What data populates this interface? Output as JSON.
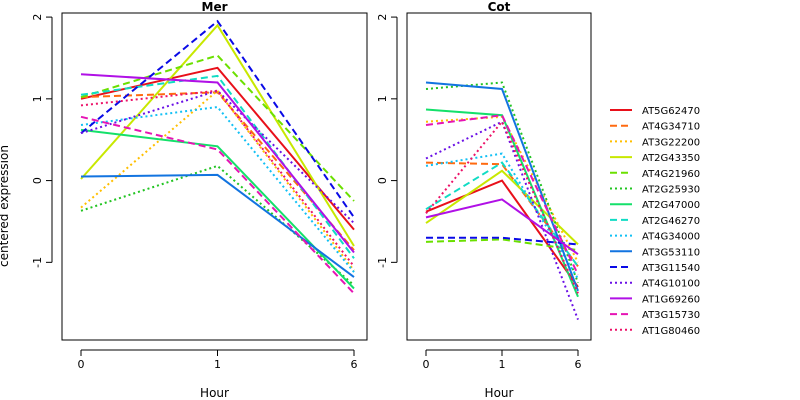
{
  "figure": {
    "ylabel": "centered expression"
  },
  "chart_data": [
    {
      "type": "line",
      "title": "Mer",
      "xlabel": "Hour",
      "ylabel": "centered expression",
      "categories": [
        "0",
        "1",
        "6"
      ],
      "yticks": [
        "-1",
        "0",
        "1",
        "2"
      ],
      "ylim": [
        -1.95,
        2.05
      ],
      "grid": false,
      "legend": "right",
      "series": [
        {
          "name": "AT5G62470",
          "values": [
            1.0,
            1.38,
            -0.6
          ]
        },
        {
          "name": "AT4G34710",
          "values": [
            1.02,
            1.08,
            -0.85
          ]
        },
        {
          "name": "AT3G22200",
          "values": [
            -0.33,
            1.1,
            -1.1
          ]
        },
        {
          "name": "AT2G43350",
          "values": [
            0.02,
            1.9,
            -0.8
          ]
        },
        {
          "name": "AT4G21960",
          "values": [
            1.02,
            1.53,
            -0.25
          ]
        },
        {
          "name": "AT2G25930",
          "values": [
            -0.37,
            0.18,
            -1.28
          ]
        },
        {
          "name": "AT2G47000",
          "values": [
            0.62,
            0.42,
            -1.32
          ]
        },
        {
          "name": "AT2G46270",
          "values": [
            1.05,
            1.28,
            -0.95
          ]
        },
        {
          "name": "AT4G34000",
          "values": [
            0.68,
            0.9,
            -1.12
          ]
        },
        {
          "name": "AT3G53110",
          "values": [
            0.05,
            0.07,
            -1.18
          ]
        },
        {
          "name": "AT3G11540",
          "values": [
            0.58,
            1.95,
            -0.45
          ]
        },
        {
          "name": "AT4G10100",
          "values": [
            0.58,
            1.1,
            -0.52
          ]
        },
        {
          "name": "AT1G69260",
          "values": [
            1.3,
            1.2,
            -0.88
          ]
        },
        {
          "name": "AT3G15730",
          "values": [
            0.78,
            0.38,
            -1.38
          ]
        },
        {
          "name": "AT1G80460",
          "values": [
            0.92,
            1.1,
            -1.05
          ]
        }
      ]
    },
    {
      "type": "line",
      "title": "Cot",
      "xlabel": "Hour",
      "ylabel": "",
      "categories": [
        "0",
        "1",
        "6"
      ],
      "yticks": [
        "-1",
        "0",
        "1",
        "2"
      ],
      "ylim": [
        -1.95,
        2.05
      ],
      "grid": false,
      "legend": "right",
      "series": [
        {
          "name": "AT5G62470",
          "values": [
            -0.38,
            0.0,
            -1.3
          ]
        },
        {
          "name": "AT4G34710",
          "values": [
            0.22,
            0.2,
            -1.05
          ]
        },
        {
          "name": "AT3G22200",
          "values": [
            0.72,
            0.78,
            -1.0
          ]
        },
        {
          "name": "AT2G43350",
          "values": [
            -0.52,
            0.12,
            -0.78
          ]
        },
        {
          "name": "AT4G21960",
          "values": [
            -0.75,
            -0.72,
            -0.85
          ]
        },
        {
          "name": "AT2G25930",
          "values": [
            1.12,
            1.2,
            -1.25
          ]
        },
        {
          "name": "AT2G47000",
          "values": [
            0.87,
            0.8,
            -1.42
          ]
        },
        {
          "name": "AT2G46270",
          "values": [
            -0.35,
            0.22,
            -1.05
          ]
        },
        {
          "name": "AT4G34000",
          "values": [
            0.18,
            0.33,
            -1.2
          ]
        },
        {
          "name": "AT3G53110",
          "values": [
            1.2,
            1.12,
            -1.35
          ]
        },
        {
          "name": "AT3G11540",
          "values": [
            -0.7,
            -0.7,
            -0.78
          ]
        },
        {
          "name": "AT4G10100",
          "values": [
            0.27,
            0.72,
            -1.7
          ]
        },
        {
          "name": "AT1G69260",
          "values": [
            -0.45,
            -0.23,
            -0.9
          ]
        },
        {
          "name": "AT3G15730",
          "values": [
            0.68,
            0.8,
            -1.15
          ]
        },
        {
          "name": "AT1G80460",
          "values": [
            -0.4,
            0.72,
            -1.38
          ]
        }
      ]
    }
  ],
  "legend": {
    "entries": [
      {
        "name": "AT5G62470",
        "color": "#e8101a",
        "dash": "solid"
      },
      {
        "name": "AT4G34710",
        "color": "#ff6a10",
        "dash": "dashed"
      },
      {
        "name": "AT3G22200",
        "color": "#ffbf00",
        "dash": "dotted"
      },
      {
        "name": "AT2G43350",
        "color": "#c8e800",
        "dash": "solid"
      },
      {
        "name": "AT4G21960",
        "color": "#6be000",
        "dash": "dashed"
      },
      {
        "name": "AT2G25930",
        "color": "#22c422",
        "dash": "dotted"
      },
      {
        "name": "AT2G47000",
        "color": "#14e06a",
        "dash": "solid"
      },
      {
        "name": "AT2G46270",
        "color": "#10dcc4",
        "dash": "dashed"
      },
      {
        "name": "AT4G34000",
        "color": "#12c0f4",
        "dash": "dotted"
      },
      {
        "name": "AT3G53110",
        "color": "#1274e0",
        "dash": "solid"
      },
      {
        "name": "AT3G11540",
        "color": "#0a0ae6",
        "dash": "dashed"
      },
      {
        "name": "AT4G10100",
        "color": "#6a10e6",
        "dash": "dotted"
      },
      {
        "name": "AT1G69260",
        "color": "#b010e6",
        "dash": "solid"
      },
      {
        "name": "AT3G15730",
        "color": "#e614b4",
        "dash": "dashed"
      },
      {
        "name": "AT1G80460",
        "color": "#ec1268",
        "dash": "dotted"
      }
    ]
  }
}
